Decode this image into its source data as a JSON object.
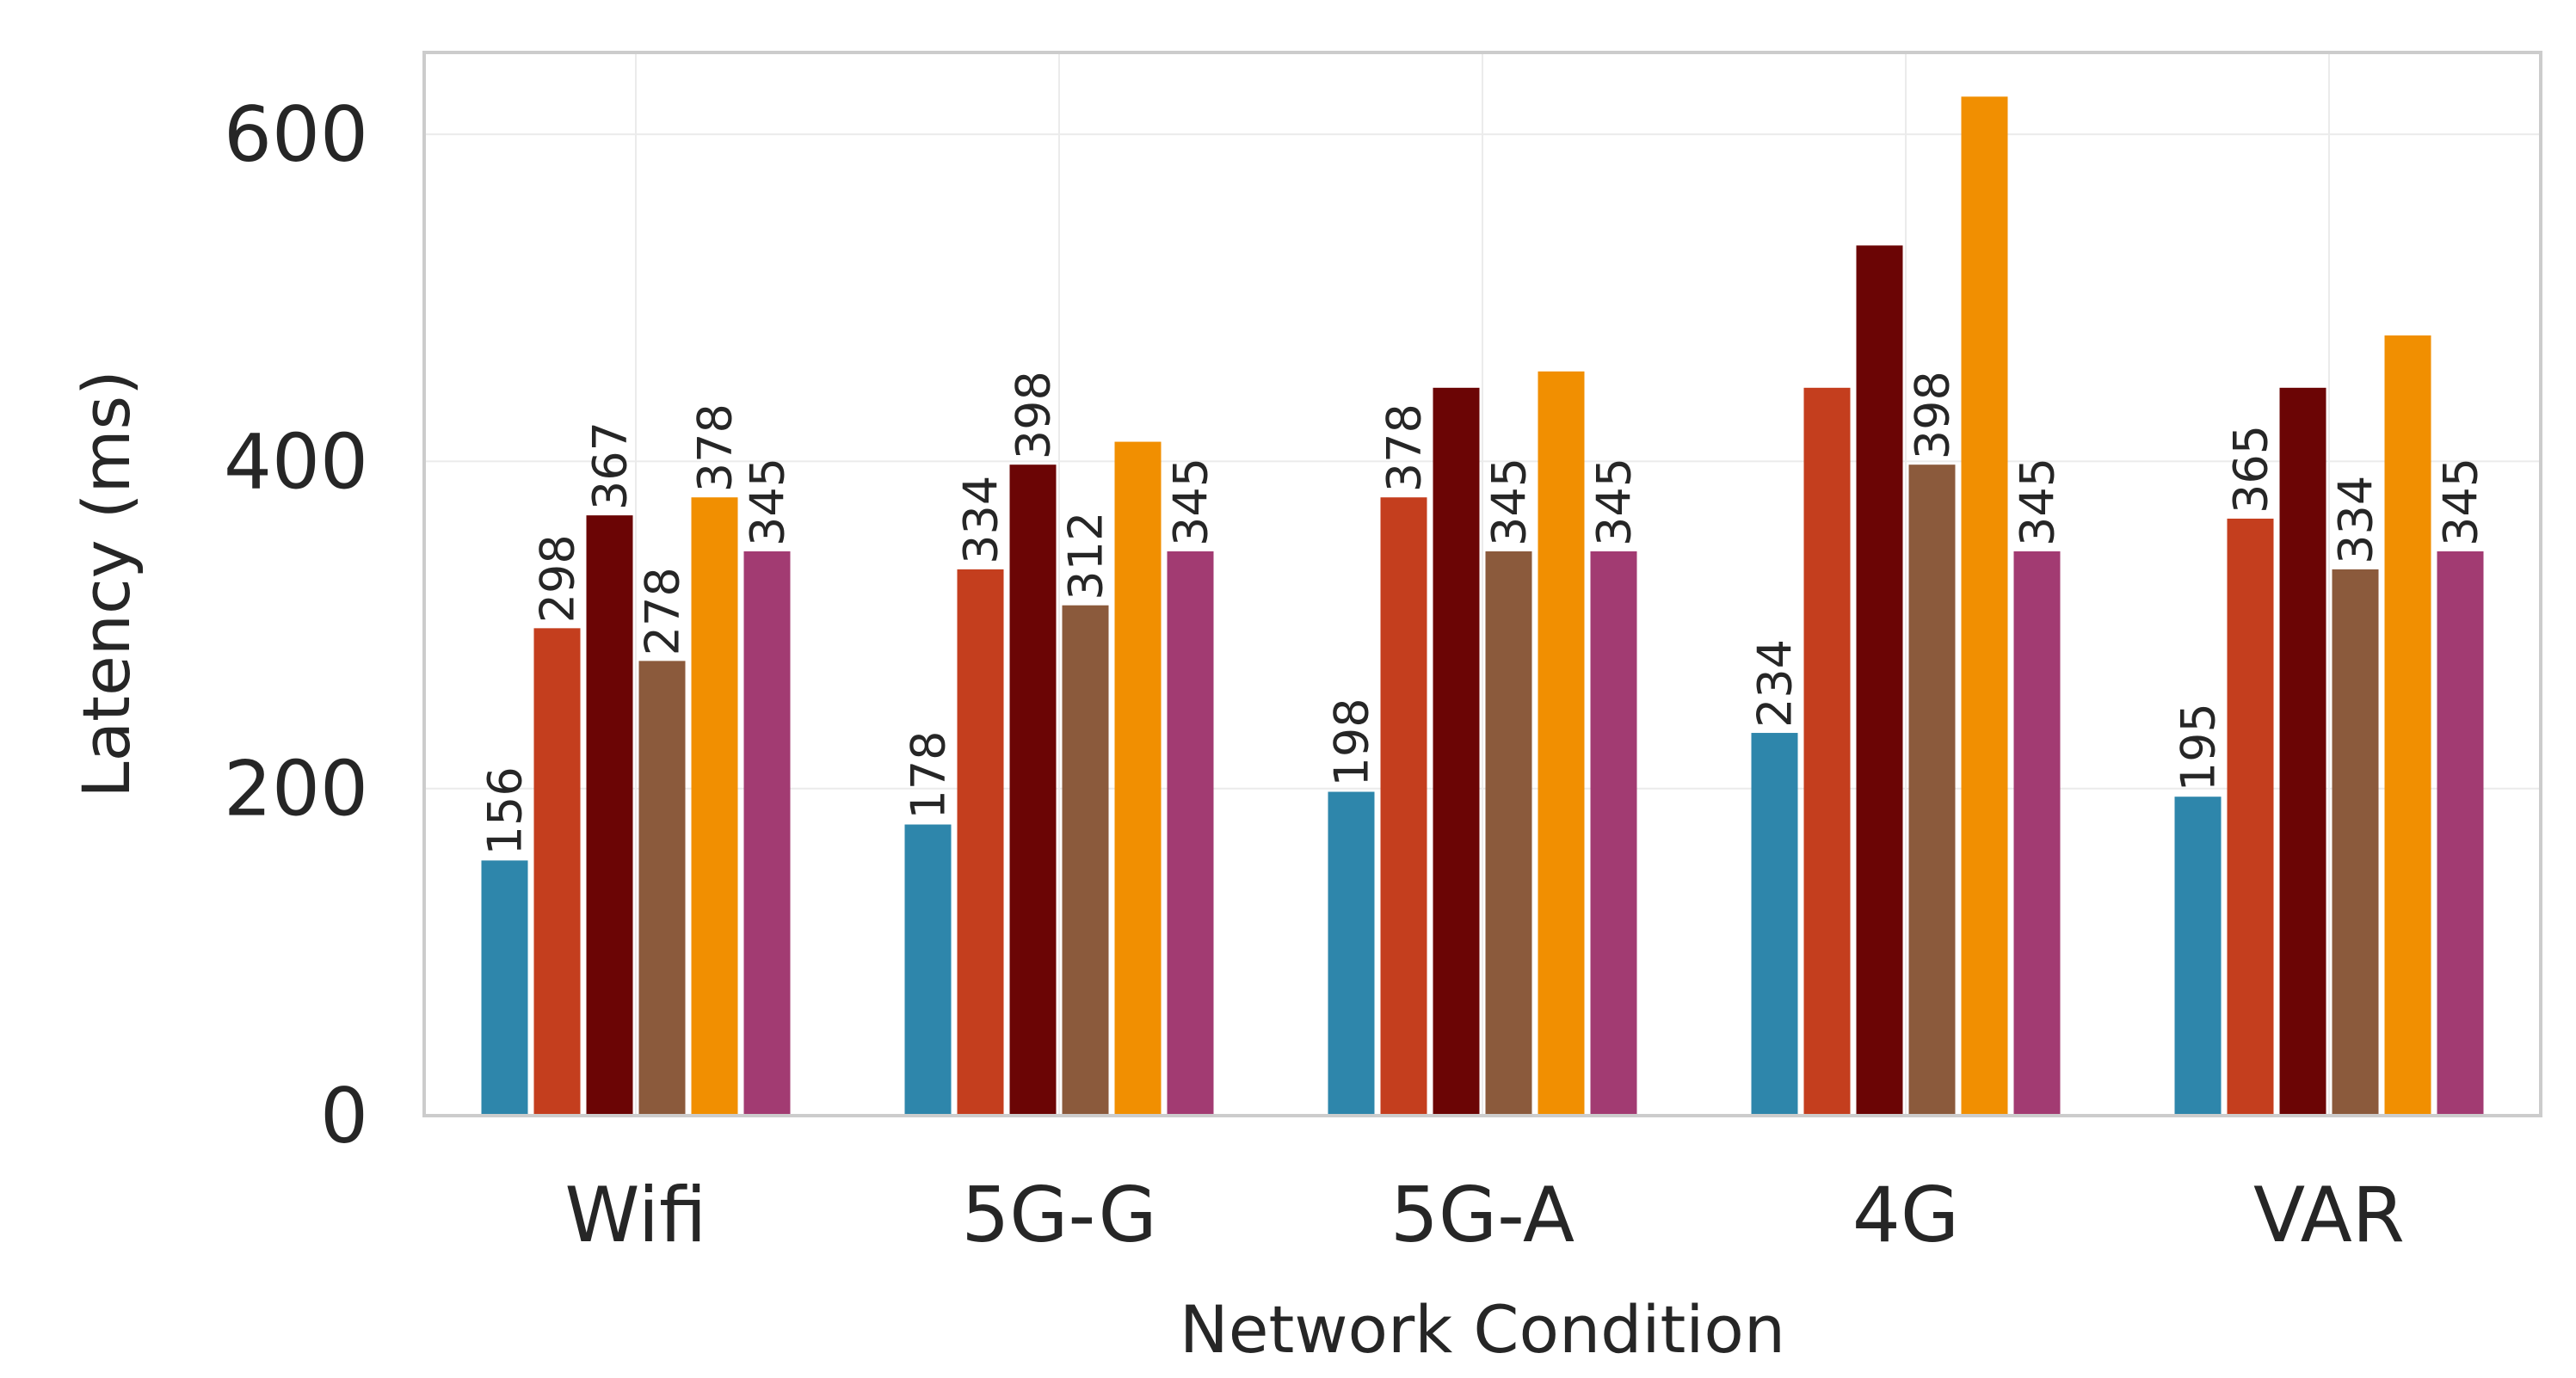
{
  "chart_data": {
    "type": "bar",
    "title": "",
    "xlabel": "Network Condition",
    "ylabel": "Latency (ms)",
    "categories": [
      "Wifi",
      "5G-G",
      "5G-A",
      "4G",
      "VAR"
    ],
    "ylim": [
      0,
      650
    ],
    "yticks": [
      0,
      200,
      400,
      600
    ],
    "grid": true,
    "legend": "none",
    "colors": [
      "#2e86ab",
      "#c43e1e",
      "#6b0505",
      "#8b5a3c",
      "#f18f01",
      "#a23b72"
    ],
    "series": [
      {
        "values": [
          156,
          178,
          198,
          234,
          195
        ],
        "labels": [
          "156",
          "178",
          "198",
          "234",
          "195"
        ]
      },
      {
        "values": [
          298,
          334,
          378,
          445,
          365
        ],
        "labels": [
          "298",
          "334",
          "378",
          "",
          "365"
        ]
      },
      {
        "values": [
          367,
          398,
          445,
          532,
          445
        ],
        "labels": [
          "367",
          "398",
          "",
          "",
          ""
        ]
      },
      {
        "values": [
          278,
          312,
          345,
          398,
          334
        ],
        "labels": [
          "278",
          "312",
          "345",
          "398",
          "334"
        ]
      },
      {
        "values": [
          378,
          412,
          455,
          623,
          477
        ],
        "labels": [
          "378",
          "",
          "",
          "",
          ""
        ]
      },
      {
        "values": [
          345,
          345,
          345,
          345,
          345
        ],
        "labels": [
          "345",
          "345",
          "345",
          "345",
          "345"
        ]
      }
    ]
  }
}
